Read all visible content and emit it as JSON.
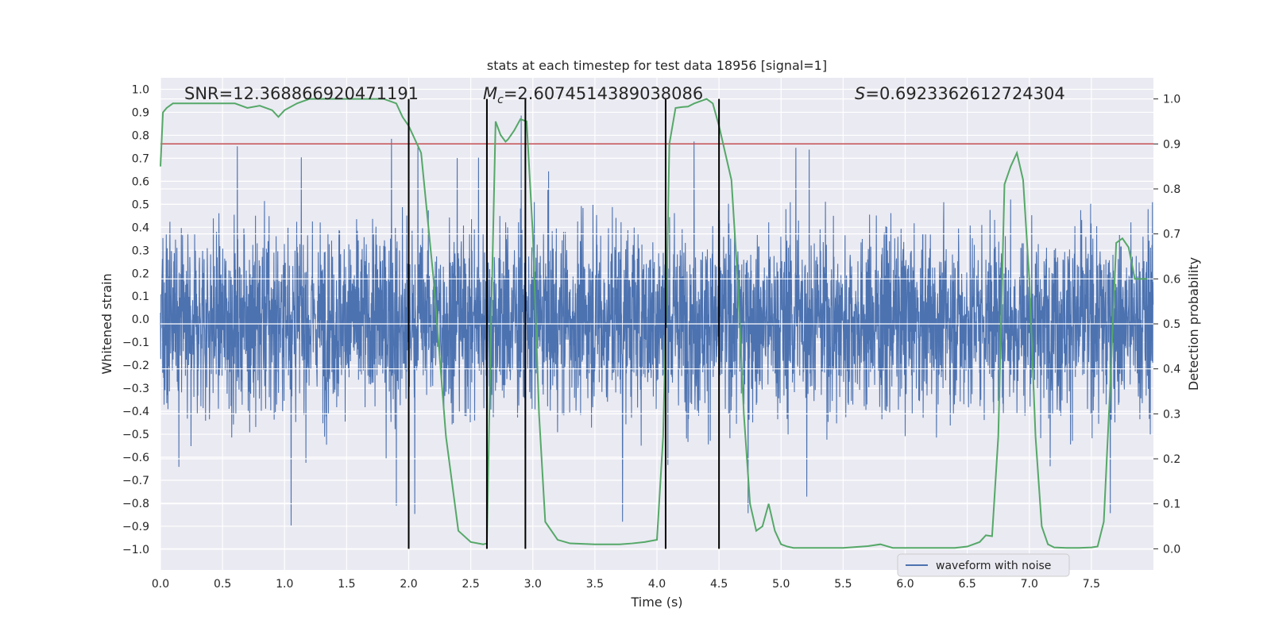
{
  "chart_data": {
    "type": "line",
    "title": "stats at each timestep for test data 18956 [signal=1]",
    "xlabel": "Time (s)",
    "ylabel_left": "Whitened strain",
    "ylabel_right": "Detection probability",
    "xlim": [
      0.0,
      8.0
    ],
    "ylim_left": [
      -1.09,
      1.05
    ],
    "ylim_right": [
      -0.047,
      1.047
    ],
    "x_ticks": [
      "0.0",
      "0.5",
      "1.0",
      "1.5",
      "2.0",
      "2.5",
      "3.0",
      "3.5",
      "4.0",
      "4.5",
      "5.0",
      "5.5",
      "6.0",
      "6.5",
      "7.0",
      "7.5"
    ],
    "y_left_ticks": [
      "1.0",
      "0.9",
      "0.8",
      "0.7",
      "0.6",
      "0.5",
      "0.4",
      "0.3",
      "0.2",
      "0.1",
      "0.0",
      "−0.1",
      "−0.2",
      "−0.3",
      "−0.4",
      "−0.5",
      "−0.6",
      "−0.7",
      "−0.8",
      "−0.9",
      "−1.0"
    ],
    "y_right_ticks": [
      "1.0",
      "0.9",
      "0.8",
      "0.7",
      "0.6",
      "0.5",
      "0.4",
      "0.3",
      "0.2",
      "0.1",
      "0.0"
    ],
    "grid": true,
    "annotations": {
      "snr": "SNR=12.368866920471191",
      "mc_symbol": "M",
      "mc_sub": "c",
      "mc_value": "=2.6074514389038086",
      "s_symbol": "S",
      "s_value": "=0.6923362612724304"
    },
    "threshold": {
      "axis": "right",
      "value": 0.9,
      "color": "#c44e52"
    },
    "event_lines": [
      2.0,
      2.63,
      2.94,
      4.07,
      4.5
    ],
    "legend": {
      "label": "waveform with noise",
      "placement": "lower right"
    },
    "colors": {
      "waveform": "#4c72b0",
      "probability": "#55a868",
      "threshold": "#c44e52",
      "event_line": "#000000",
      "plot_bg": "#eaeaf2"
    },
    "series": [
      {
        "name": "waveform with noise",
        "axis": "left",
        "description_values": "dense noise with whitened strain mostly within ±0.6, occasional spikes to about ±0.9"
      },
      {
        "axis": "right",
        "x": [
          0.0,
          0.02,
          0.05,
          0.1,
          0.2,
          0.3,
          0.4,
          0.5,
          0.6,
          0.7,
          0.8,
          0.9,
          0.95,
          1.0,
          1.1,
          1.2,
          1.3,
          1.5,
          1.7,
          1.8,
          1.9,
          1.95,
          2.0,
          2.1,
          2.2,
          2.3,
          2.4,
          2.5,
          2.6,
          2.63,
          2.66,
          2.7,
          2.74,
          2.78,
          2.8,
          2.85,
          2.9,
          2.95,
          3.0,
          3.05,
          3.1,
          3.2,
          3.3,
          3.5,
          3.7,
          3.8,
          3.9,
          4.0,
          4.05,
          4.08,
          4.1,
          4.15,
          4.2,
          4.25,
          4.3,
          4.4,
          4.45,
          4.5,
          4.55,
          4.6,
          4.65,
          4.7,
          4.75,
          4.8,
          4.85,
          4.9,
          4.95,
          5.0,
          5.05,
          5.1,
          5.3,
          5.5,
          5.7,
          5.8,
          5.85,
          5.9,
          6.0,
          6.2,
          6.4,
          6.5,
          6.6,
          6.65,
          6.7,
          6.75,
          6.8,
          6.85,
          6.9,
          6.95,
          7.0,
          7.05,
          7.1,
          7.15,
          7.2,
          7.3,
          7.4,
          7.5,
          7.55,
          7.6,
          7.65,
          7.7,
          7.75,
          7.8,
          7.85,
          7.9,
          7.95
        ],
        "values": [
          0.85,
          0.97,
          0.98,
          0.99,
          0.99,
          0.99,
          0.99,
          0.99,
          0.99,
          0.98,
          0.985,
          0.975,
          0.96,
          0.975,
          0.99,
          1.0,
          1.0,
          1.0,
          1.0,
          1.0,
          0.99,
          0.96,
          0.94,
          0.88,
          0.6,
          0.25,
          0.04,
          0.015,
          0.01,
          0.012,
          0.45,
          0.95,
          0.92,
          0.905,
          0.91,
          0.93,
          0.955,
          0.95,
          0.7,
          0.3,
          0.06,
          0.02,
          0.012,
          0.01,
          0.01,
          0.012,
          0.015,
          0.02,
          0.25,
          0.6,
          0.9,
          0.98,
          0.982,
          0.983,
          0.99,
          1.0,
          0.99,
          0.94,
          0.88,
          0.82,
          0.6,
          0.3,
          0.1,
          0.04,
          0.05,
          0.1,
          0.04,
          0.01,
          0.005,
          0.002,
          0.002,
          0.002,
          0.006,
          0.01,
          0.006,
          0.002,
          0.002,
          0.002,
          0.002,
          0.005,
          0.015,
          0.03,
          0.028,
          0.25,
          0.81,
          0.85,
          0.88,
          0.82,
          0.6,
          0.25,
          0.05,
          0.01,
          0.003,
          0.002,
          0.002,
          0.003,
          0.005,
          0.06,
          0.35,
          0.68,
          0.69,
          0.67,
          0.6,
          0.6,
          0.6
        ]
      }
    ]
  }
}
